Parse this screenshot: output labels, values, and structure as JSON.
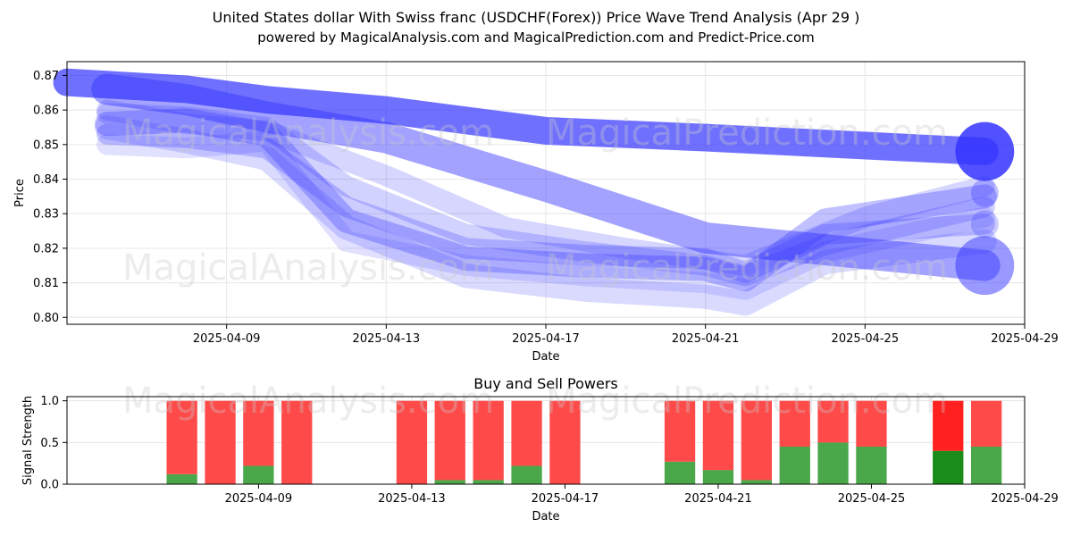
{
  "header": {
    "title": "United States dollar With Swiss franc (USDCHF(Forex)) Price Wave Trend Analysis (Apr 29 )",
    "subtitle": "powered by MagicalAnalysis.com and MagicalPrediction.com and Predict-Price.com"
  },
  "watermarks": [
    "MagicalAnalysis.com",
    "MagicalPrediction.com"
  ],
  "colors": {
    "wave": "#3333ff",
    "buy": "#4aa84a",
    "sell": "#ff4a4a",
    "buy_highlight": "#1a8c1a",
    "sell_highlight": "#ff2020",
    "grid": "#e6e6e6"
  },
  "chart_data": [
    {
      "type": "area",
      "title": "",
      "xlabel": "Date",
      "ylabel": "Price",
      "xlim": [
        "2025-04-05",
        "2025-04-29"
      ],
      "ylim": [
        0.798,
        0.874
      ],
      "x_ticks": [
        "2025-04-09",
        "2025-04-13",
        "2025-04-17",
        "2025-04-21",
        "2025-04-25",
        "2025-04-29"
      ],
      "y_ticks": [
        "0.80",
        "0.81",
        "0.82",
        "0.83",
        "0.84",
        "0.85",
        "0.86",
        "0.87"
      ],
      "grid": true,
      "series": [
        {
          "dates": [
            "2025-04-05",
            "2025-04-08",
            "2025-04-10",
            "2025-04-13",
            "2025-04-17",
            "2025-04-21",
            "2025-04-28"
          ],
          "values": [
            0.868,
            0.866,
            0.863,
            0.86,
            0.854,
            0.852,
            0.848
          ],
          "opacity": 0.7,
          "width": 0.008
        },
        {
          "dates": [
            "2025-04-06",
            "2025-04-08",
            "2025-04-10",
            "2025-04-13",
            "2025-04-17",
            "2025-04-21",
            "2025-04-28"
          ],
          "values": [
            0.866,
            0.863,
            0.858,
            0.852,
            0.838,
            0.823,
            0.815
          ],
          "opacity": 0.45,
          "width": 0.009
        },
        {
          "dates": [
            "2025-04-06",
            "2025-04-08",
            "2025-04-10",
            "2025-04-12",
            "2025-04-15",
            "2025-04-18",
            "2025-04-21",
            "2025-04-22",
            "2025-04-24",
            "2025-04-28"
          ],
          "values": [
            0.856,
            0.857,
            0.853,
            0.828,
            0.817,
            0.815,
            0.814,
            0.811,
            0.828,
            0.835
          ],
          "opacity": 0.3,
          "width": 0.007
        },
        {
          "dates": [
            "2025-04-06",
            "2025-04-08",
            "2025-04-10",
            "2025-04-12",
            "2025-04-15",
            "2025-04-18",
            "2025-04-21",
            "2025-04-22",
            "2025-04-24",
            "2025-04-28"
          ],
          "values": [
            0.853,
            0.852,
            0.849,
            0.832,
            0.82,
            0.818,
            0.817,
            0.813,
            0.824,
            0.827
          ],
          "opacity": 0.25,
          "width": 0.006
        },
        {
          "dates": [
            "2025-04-06",
            "2025-04-08",
            "2025-04-10",
            "2025-04-12",
            "2025-04-15",
            "2025-04-18",
            "2025-04-21",
            "2025-04-22",
            "2025-04-24",
            "2025-04-28"
          ],
          "values": [
            0.859,
            0.858,
            0.855,
            0.838,
            0.824,
            0.819,
            0.815,
            0.812,
            0.821,
            0.832
          ],
          "opacity": 0.22,
          "width": 0.006
        },
        {
          "dates": [
            "2025-04-06",
            "2025-04-08",
            "2025-04-10",
            "2025-04-12",
            "2025-04-15",
            "2025-04-18",
            "2025-04-21",
            "2025-04-22",
            "2025-04-24",
            "2025-04-28"
          ],
          "values": [
            0.855,
            0.851,
            0.846,
            0.826,
            0.812,
            0.808,
            0.806,
            0.804,
            0.816,
            0.822
          ],
          "opacity": 0.18,
          "width": 0.007
        },
        {
          "dates": [
            "2025-04-06",
            "2025-04-08",
            "2025-04-10",
            "2025-04-13",
            "2025-04-16",
            "2025-04-19",
            "2025-04-22",
            "2025-04-25",
            "2025-04-28"
          ],
          "values": [
            0.86,
            0.856,
            0.854,
            0.841,
            0.826,
            0.82,
            0.815,
            0.829,
            0.838
          ],
          "opacity": 0.2,
          "width": 0.006
        },
        {
          "dates": [
            "2025-04-06",
            "2025-04-08",
            "2025-04-10",
            "2025-04-12",
            "2025-04-15",
            "2025-04-18",
            "2025-04-21",
            "2025-04-22",
            "2025-04-24",
            "2025-04-28"
          ],
          "values": [
            0.85,
            0.849,
            0.851,
            0.822,
            0.815,
            0.812,
            0.81,
            0.808,
            0.819,
            0.829
          ],
          "opacity": 0.15,
          "width": 0.006
        }
      ],
      "endpoints": [
        {
          "date": "2025-04-28",
          "value": 0.848,
          "opacity": 0.85,
          "r": 0.0085
        },
        {
          "date": "2025-04-28",
          "value": 0.815,
          "opacity": 0.5,
          "r": 0.0085
        },
        {
          "date": "2025-04-28",
          "value": 0.836,
          "opacity": 0.3,
          "r": 0.004
        },
        {
          "date": "2025-04-28",
          "value": 0.827,
          "opacity": 0.25,
          "r": 0.004
        }
      ]
    },
    {
      "type": "bar",
      "title": "Buy and Sell Powers",
      "xlabel": "Date",
      "ylabel": "Signal Strength",
      "xlim": [
        "2025-04-04",
        "2025-04-29"
      ],
      "ylim": [
        0,
        1.05
      ],
      "x_ticks": [
        "2025-04-09",
        "2025-04-13",
        "2025-04-17",
        "2025-04-21",
        "2025-04-25",
        "2025-04-29"
      ],
      "y_ticks": [
        "0.0",
        "0.5",
        "1.0"
      ],
      "grid": true,
      "dates": [
        "2025-04-07",
        "2025-04-08",
        "2025-04-09",
        "2025-04-10",
        "2025-04-13",
        "2025-04-14",
        "2025-04-15",
        "2025-04-16",
        "2025-04-17",
        "2025-04-20",
        "2025-04-21",
        "2025-04-22",
        "2025-04-23",
        "2025-04-24",
        "2025-04-25",
        "2025-04-27",
        "2025-04-28"
      ],
      "series": [
        {
          "name": "Buy",
          "values": [
            0.12,
            0.0,
            0.22,
            0.0,
            0.0,
            0.05,
            0.05,
            0.22,
            0.0,
            0.27,
            0.17,
            0.05,
            0.45,
            0.5,
            0.45,
            0.4,
            0.45
          ]
        },
        {
          "name": "Sell",
          "values": [
            0.88,
            1.0,
            0.78,
            1.0,
            1.0,
            0.95,
            0.95,
            0.78,
            1.0,
            0.73,
            0.83,
            0.95,
            0.55,
            0.5,
            0.55,
            0.6,
            0.55
          ]
        }
      ],
      "highlight_date": "2025-04-27"
    }
  ]
}
